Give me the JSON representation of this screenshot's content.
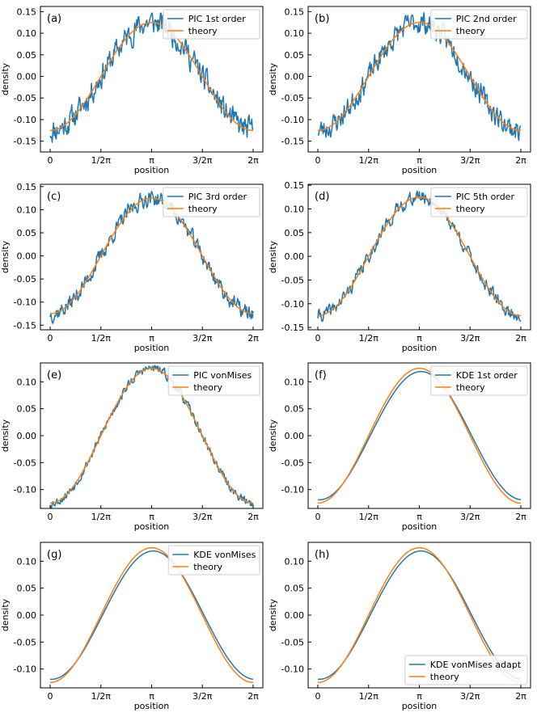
{
  "colors": {
    "pic": "#1f77b4",
    "theory": "#ff7f0e",
    "axes": "#000000"
  },
  "chart_data": [
    {
      "panel": "(a)",
      "type": "line",
      "xlabel": "position",
      "ylabel": "density",
      "xlim": [
        0,
        6.2832
      ],
      "xticks": [
        0,
        1.5708,
        3.1416,
        4.7124,
        6.2832
      ],
      "xticklabels": [
        "0",
        "1/2π",
        "π",
        "3/2π",
        "2π"
      ],
      "ylim": [
        -0.175,
        0.162
      ],
      "yticks": [
        -0.15,
        -0.1,
        -0.05,
        0.0,
        0.05,
        0.1,
        0.15
      ],
      "yticklabels": [
        "-0.15",
        "-0.10",
        "-0.05",
        "0.00",
        "0.05",
        "0.10",
        "0.15"
      ],
      "legend_position": "top-right",
      "series": [
        {
          "name": "PIC 1st order",
          "color": "#1f77b4",
          "kind": "noisy",
          "amplitude": 0.125,
          "noise": 0.025,
          "seed": 11
        },
        {
          "name": "theory",
          "color": "#ff7f0e",
          "kind": "cosine",
          "amplitude": 0.125
        }
      ]
    },
    {
      "panel": "(b)",
      "type": "line",
      "xlabel": "position",
      "ylabel": "density",
      "xlim": [
        0,
        6.2832
      ],
      "xticks": [
        0,
        1.5708,
        3.1416,
        4.7124,
        6.2832
      ],
      "xticklabels": [
        "0",
        "1/2π",
        "π",
        "3/2π",
        "2π"
      ],
      "ylim": [
        -0.175,
        0.162
      ],
      "yticks": [
        -0.15,
        -0.1,
        -0.05,
        0.0,
        0.05,
        0.1,
        0.15
      ],
      "yticklabels": [
        "-0.15",
        "-0.10",
        "-0.05",
        "0.00",
        "0.05",
        "0.10",
        "0.15"
      ],
      "legend_position": "top-right",
      "series": [
        {
          "name": "PIC 2nd order",
          "color": "#1f77b4",
          "kind": "noisy",
          "amplitude": 0.125,
          "noise": 0.022,
          "seed": 23
        },
        {
          "name": "theory",
          "color": "#ff7f0e",
          "kind": "cosine",
          "amplitude": 0.125
        }
      ]
    },
    {
      "panel": "(c)",
      "type": "line",
      "xlabel": "position",
      "ylabel": "density",
      "xlim": [
        0,
        6.2832
      ],
      "xticks": [
        0,
        1.5708,
        3.1416,
        4.7124,
        6.2832
      ],
      "xticklabels": [
        "0",
        "1/2π",
        "π",
        "3/2π",
        "2π"
      ],
      "ylim": [
        -0.16,
        0.155
      ],
      "yticks": [
        -0.15,
        -0.1,
        -0.05,
        0.0,
        0.05,
        0.1,
        0.15
      ],
      "yticklabels": [
        "-0.15",
        "-0.10",
        "-0.05",
        "0.00",
        "0.05",
        "0.10",
        "0.15"
      ],
      "legend_position": "top-right",
      "series": [
        {
          "name": "PIC 3rd order",
          "color": "#1f77b4",
          "kind": "noisy",
          "amplitude": 0.125,
          "noise": 0.015,
          "seed": 37
        },
        {
          "name": "theory",
          "color": "#ff7f0e",
          "kind": "cosine",
          "amplitude": 0.125
        }
      ]
    },
    {
      "panel": "(d)",
      "type": "line",
      "xlabel": "position",
      "ylabel": "density",
      "xlim": [
        0,
        6.2832
      ],
      "xticks": [
        0,
        1.5708,
        3.1416,
        4.7124,
        6.2832
      ],
      "xticklabels": [
        "0",
        "1/2π",
        "π",
        "3/2π",
        "2π"
      ],
      "ylim": [
        -0.155,
        0.152
      ],
      "yticks": [
        -0.15,
        -0.1,
        -0.05,
        0.0,
        0.05,
        0.1,
        0.15
      ],
      "yticklabels": [
        "-0.15",
        "-0.10",
        "-0.05",
        "0.00",
        "0.05",
        "0.10",
        "0.15"
      ],
      "legend_position": "top-right",
      "series": [
        {
          "name": "PIC 5th order",
          "color": "#1f77b4",
          "kind": "noisy",
          "amplitude": 0.125,
          "noise": 0.012,
          "seed": 41
        },
        {
          "name": "theory",
          "color": "#ff7f0e",
          "kind": "cosine",
          "amplitude": 0.125
        }
      ]
    },
    {
      "panel": "(e)",
      "type": "line",
      "xlabel": "position",
      "ylabel": "density",
      "xlim": [
        0,
        6.2832
      ],
      "xticks": [
        0,
        1.5708,
        3.1416,
        4.7124,
        6.2832
      ],
      "xticklabels": [
        "0",
        "1/2π",
        "π",
        "3/2π",
        "2π"
      ],
      "ylim": [
        -0.135,
        0.135
      ],
      "yticks": [
        -0.1,
        -0.05,
        0.0,
        0.05,
        0.1
      ],
      "yticklabels": [
        "-0.10",
        "-0.05",
        "0.00",
        "0.05",
        "0.10"
      ],
      "legend_position": "top-right",
      "series": [
        {
          "name": "PIC vonMises",
          "color": "#1f77b4",
          "kind": "noisy",
          "amplitude": 0.125,
          "noise": 0.007,
          "seed": 53
        },
        {
          "name": "theory",
          "color": "#ff7f0e",
          "kind": "cosine",
          "amplitude": 0.125
        }
      ]
    },
    {
      "panel": "(f)",
      "type": "line",
      "xlabel": "position",
      "ylabel": "density",
      "xlim": [
        0,
        6.2832
      ],
      "xticks": [
        0,
        1.5708,
        3.1416,
        4.7124,
        6.2832
      ],
      "xticklabels": [
        "0",
        "1/2π",
        "π",
        "3/2π",
        "2π"
      ],
      "ylim": [
        -0.135,
        0.135
      ],
      "yticks": [
        -0.1,
        -0.05,
        0.0,
        0.05,
        0.1
      ],
      "yticklabels": [
        "-0.10",
        "-0.05",
        "0.00",
        "0.05",
        "0.10"
      ],
      "legend_position": "top-right",
      "series": [
        {
          "name": "KDE 1st order",
          "color": "#1f77b4",
          "kind": "smooth",
          "amplitude": 0.119,
          "phase": 0.05
        },
        {
          "name": "theory",
          "color": "#ff7f0e",
          "kind": "cosine",
          "amplitude": 0.125
        }
      ]
    },
    {
      "panel": "(g)",
      "type": "line",
      "xlabel": "position",
      "ylabel": "density",
      "xlim": [
        0,
        6.2832
      ],
      "xticks": [
        0,
        1.5708,
        3.1416,
        4.7124,
        6.2832
      ],
      "xticklabels": [
        "0",
        "1/2π",
        "π",
        "3/2π",
        "2π"
      ],
      "ylim": [
        -0.135,
        0.135
      ],
      "yticks": [
        -0.1,
        -0.05,
        0.0,
        0.05,
        0.1
      ],
      "yticklabels": [
        "-0.10",
        "-0.05",
        "0.00",
        "0.05",
        "0.10"
      ],
      "legend_position": "top-right",
      "series": [
        {
          "name": "KDE vonMises",
          "color": "#1f77b4",
          "kind": "smooth",
          "amplitude": 0.119,
          "phase": 0.05
        },
        {
          "name": "theory",
          "color": "#ff7f0e",
          "kind": "cosine",
          "amplitude": 0.125
        }
      ]
    },
    {
      "panel": "(h)",
      "type": "line",
      "xlabel": "position",
      "ylabel": "density",
      "xlim": [
        0,
        6.2832
      ],
      "xticks": [
        0,
        1.5708,
        3.1416,
        4.7124,
        6.2832
      ],
      "xticklabels": [
        "0",
        "1/2π",
        "π",
        "3/2π",
        "2π"
      ],
      "ylim": [
        -0.135,
        0.135
      ],
      "yticks": [
        -0.1,
        -0.05,
        0.0,
        0.05,
        0.1
      ],
      "yticklabels": [
        "-0.10",
        "-0.05",
        "0.00",
        "0.05",
        "0.10"
      ],
      "legend_position": "bottom-right",
      "series": [
        {
          "name": "KDE vonMises adapt",
          "color": "#1f77b4",
          "kind": "smooth",
          "amplitude": 0.119,
          "phase": 0.05
        },
        {
          "name": "theory",
          "color": "#ff7f0e",
          "kind": "cosine",
          "amplitude": 0.125
        }
      ]
    }
  ]
}
